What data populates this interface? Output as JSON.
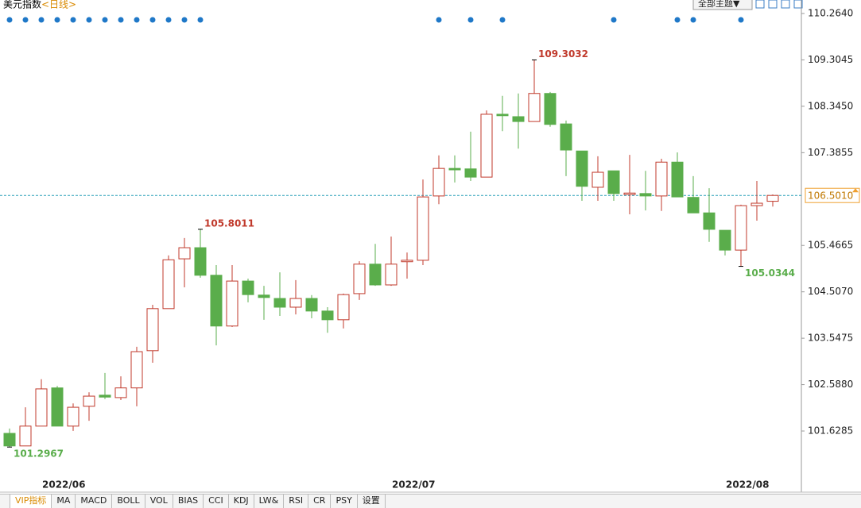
{
  "chart_data": {
    "type": "candlestick",
    "title": "美元指数",
    "subtitle": "<日线>",
    "categories": [
      null,
      null,
      null,
      "2022/06",
      null,
      null,
      null,
      null,
      null,
      null,
      null,
      null,
      null,
      null,
      null,
      null,
      null,
      null,
      null,
      null,
      null,
      null,
      null,
      null,
      null,
      "2022/07",
      null,
      null,
      null,
      null,
      null,
      null,
      null,
      null,
      null,
      null,
      null,
      null,
      null,
      null,
      null,
      null,
      null,
      null,
      null,
      null,
      "2022/08",
      null,
      null
    ],
    "open": [
      101.58,
      101.32,
      101.73,
      102.52,
      101.73,
      102.14,
      102.37,
      102.32,
      102.52,
      103.29,
      104.16,
      105.19,
      105.42,
      104.85,
      103.8,
      104.73,
      104.44,
      104.37,
      104.19,
      104.37,
      104.11,
      103.93,
      104.47,
      105.08,
      104.65,
      105.13,
      105.16,
      106.49,
      107.06,
      107.05,
      106.88,
      108.18,
      108.13,
      108.03,
      108.61,
      107.98,
      107.42,
      106.67,
      107.01,
      106.52,
      106.54,
      106.49,
      107.19,
      106.46,
      106.14,
      105.78,
      105.37,
      106.29,
      106.38
    ],
    "high": [
      101.68,
      102.12,
      102.7,
      102.56,
      102.2,
      102.43,
      102.83,
      102.76,
      103.37,
      104.24,
      105.26,
      105.62,
      105.8011,
      105.06,
      105.06,
      104.78,
      104.63,
      104.91,
      104.75,
      104.44,
      104.19,
      104.47,
      105.14,
      105.5,
      105.65,
      105.32,
      106.83,
      107.33,
      107.33,
      107.82,
      108.26,
      108.56,
      108.61,
      109.3032,
      108.64,
      108.05,
      107.42,
      107.31,
      107.01,
      107.34,
      107.01,
      107.26,
      107.39,
      106.9,
      106.65,
      105.78,
      106.31,
      106.8,
      106.52
    ],
    "low": [
      101.2967,
      101.32,
      101.73,
      101.73,
      101.63,
      101.84,
      102.29,
      102.27,
      102.14,
      103.04,
      104.16,
      104.6,
      104.8,
      103.4,
      103.78,
      104.29,
      103.93,
      104.01,
      104.04,
      103.96,
      103.66,
      103.75,
      104.34,
      104.63,
      104.63,
      104.78,
      105.06,
      106.32,
      106.77,
      106.8,
      106.88,
      107.83,
      107.47,
      108.03,
      107.92,
      106.9,
      106.39,
      106.39,
      106.39,
      106.11,
      106.19,
      106.18,
      106.47,
      106.16,
      105.54,
      105.26,
      105.0344,
      105.98,
      106.27
    ],
    "close": [
      101.32,
      101.73,
      102.5,
      101.73,
      102.12,
      102.35,
      102.33,
      102.52,
      103.27,
      104.16,
      105.17,
      105.42,
      104.85,
      103.8,
      104.73,
      104.45,
      104.39,
      104.19,
      104.37,
      104.11,
      103.93,
      104.45,
      105.08,
      104.65,
      105.08,
      105.16,
      106.47,
      107.06,
      107.03,
      106.88,
      108.18,
      108.15,
      108.03,
      108.61,
      107.97,
      107.44,
      106.69,
      106.98,
      106.54,
      106.55,
      106.49,
      107.19,
      106.47,
      106.14,
      105.8,
      105.37,
      106.29,
      106.34,
      106.501
    ],
    "up_color": "#c0392b",
    "down_color": "#5aad4b",
    "ylim": [
      100.693,
      110.543
    ],
    "yticks": [
      {
        "value": 110.264,
        "label": "110.2640"
      },
      {
        "value": 109.3045,
        "label": "109.3045"
      },
      {
        "value": 108.345,
        "label": "108.3450"
      },
      {
        "value": 107.3855,
        "label": "107.3855"
      },
      {
        "value": 105.4665,
        "label": "105.4665"
      },
      {
        "value": 104.507,
        "label": "104.5070"
      },
      {
        "value": 103.5475,
        "label": "103.5475"
      },
      {
        "value": 102.588,
        "label": "102.5880"
      },
      {
        "value": 101.6285,
        "label": "101.6285"
      }
    ],
    "last_price": {
      "value": 106.501,
      "label": "106.5010"
    },
    "grid": false
  },
  "toolbar": {
    "theme_button": "全部主题▼"
  },
  "indicator_tabs": [
    "VIP指标",
    "MA",
    "MACD",
    "BOLL",
    "VOL",
    "BIAS",
    "CCI",
    "KDJ",
    "LW&",
    "RSI",
    "CR",
    "PSY",
    "设置"
  ]
}
